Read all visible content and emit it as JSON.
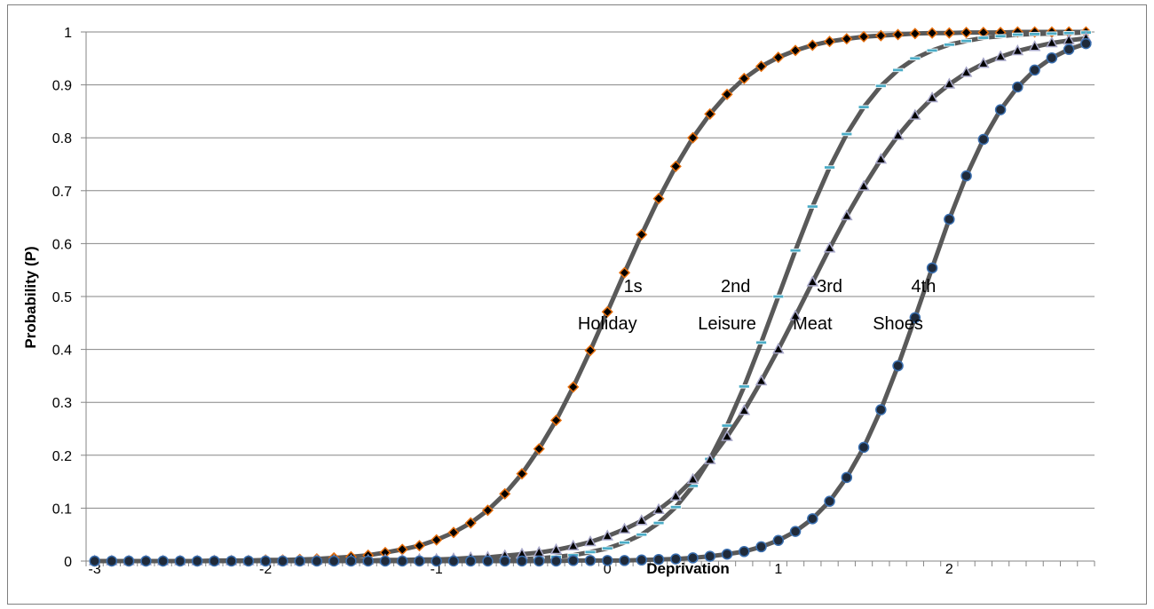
{
  "chart_data": {
    "type": "line",
    "title": "",
    "xlabel": "Deprivation",
    "ylabel": "Probability (P)",
    "xlim": [
      -3,
      2.8
    ],
    "ylim": [
      0,
      1
    ],
    "x_ticks": [
      "-3",
      "-2",
      "-1",
      "0",
      "1",
      "2"
    ],
    "x_tick_values": [
      -3,
      -2,
      -1,
      0,
      1,
      2
    ],
    "y_ticks": [
      "0",
      "0.1",
      "0.2",
      "0.3",
      "0.4",
      "0.5",
      "0.6",
      "0.7",
      "0.8",
      "0.9",
      "1"
    ],
    "grid": "horizontal",
    "legend": "none",
    "line_color": "#595959",
    "annotations": [
      {
        "text": "1s",
        "x": 0.15,
        "y": 0.52
      },
      {
        "text": "Holiday",
        "x": 0.0,
        "y": 0.45
      },
      {
        "text": "2nd",
        "x": 0.75,
        "y": 0.52
      },
      {
        "text": "Leisure",
        "x": 0.7,
        "y": 0.45
      },
      {
        "text": "3rd",
        "x": 1.3,
        "y": 0.52
      },
      {
        "text": "Meat",
        "x": 1.2,
        "y": 0.45
      },
      {
        "text": "4th",
        "x": 1.85,
        "y": 0.52
      },
      {
        "text": "Shoes",
        "x": 1.7,
        "y": 0.45
      }
    ],
    "series": [
      {
        "marker": "diamond",
        "marker_fill": "#000000",
        "marker_edge": "#e46c0a",
        "x": [
          -3.0,
          -2.9,
          -2.8,
          -2.7,
          -2.6,
          -2.5,
          -2.4,
          -2.3,
          -2.2,
          -2.1,
          -2.0,
          -1.9,
          -1.8,
          -1.7,
          -1.6,
          -1.5,
          -1.4,
          -1.3,
          -1.2,
          -1.1,
          -1.0,
          -0.9,
          -0.8,
          -0.7,
          -0.6,
          -0.5,
          -0.4,
          -0.3,
          -0.2,
          -0.1,
          0.0,
          0.1,
          0.2,
          0.3,
          0.4,
          0.5,
          0.6,
          0.7,
          0.8,
          0.9,
          1.0,
          1.1,
          1.2,
          1.3,
          1.4,
          1.5,
          1.6,
          1.7,
          1.8,
          1.9,
          2.0,
          2.1,
          2.2,
          2.3,
          2.4,
          2.5,
          2.6,
          2.7,
          2.8
        ],
        "y": [
          0.0,
          0.0,
          0.0,
          0.0,
          0.0,
          0.0,
          0.0,
          0.001,
          0.001,
          0.001,
          0.002,
          0.002,
          0.003,
          0.004,
          0.006,
          0.008,
          0.011,
          0.016,
          0.022,
          0.029,
          0.04,
          0.054,
          0.072,
          0.096,
          0.127,
          0.165,
          0.212,
          0.266,
          0.329,
          0.398,
          0.471,
          0.545,
          0.617,
          0.685,
          0.746,
          0.8,
          0.845,
          0.882,
          0.912,
          0.935,
          0.952,
          0.965,
          0.975,
          0.982,
          0.987,
          0.991,
          0.993,
          0.995,
          0.997,
          0.998,
          0.998,
          0.999,
          0.999,
          0.999,
          1.0,
          1.0,
          1.0,
          1.0,
          1.0
        ]
      },
      {
        "marker": "dash",
        "marker_fill": "#4bacc6",
        "marker_edge": "#4bacc6",
        "x": [
          -3.0,
          -2.9,
          -2.8,
          -2.7,
          -2.6,
          -2.5,
          -2.4,
          -2.3,
          -2.2,
          -2.1,
          -2.0,
          -1.9,
          -1.8,
          -1.7,
          -1.6,
          -1.5,
          -1.4,
          -1.3,
          -1.2,
          -1.1,
          -1.0,
          -0.9,
          -0.8,
          -0.7,
          -0.6,
          -0.5,
          -0.4,
          -0.3,
          -0.2,
          -0.1,
          0.0,
          0.1,
          0.2,
          0.3,
          0.4,
          0.5,
          0.6,
          0.7,
          0.8,
          0.9,
          1.0,
          1.1,
          1.2,
          1.3,
          1.4,
          1.5,
          1.6,
          1.7,
          1.8,
          1.9,
          2.0,
          2.1,
          2.2,
          2.3,
          2.4,
          2.5,
          2.6,
          2.7,
          2.8
        ],
        "y": [
          0.0,
          0.0,
          0.0,
          0.0,
          0.0,
          0.0,
          0.0,
          0.0,
          0.0,
          0.0,
          0.0,
          0.0,
          0.0,
          0.0,
          0.0,
          0.0,
          0.0,
          0.0,
          0.0,
          0.0,
          0.001,
          0.001,
          0.001,
          0.002,
          0.003,
          0.004,
          0.005,
          0.008,
          0.011,
          0.017,
          0.024,
          0.035,
          0.05,
          0.072,
          0.102,
          0.142,
          0.193,
          0.256,
          0.33,
          0.413,
          0.5,
          0.587,
          0.67,
          0.744,
          0.807,
          0.858,
          0.898,
          0.928,
          0.95,
          0.965,
          0.976,
          0.983,
          0.989,
          0.992,
          0.995,
          0.996,
          0.997,
          0.998,
          0.999
        ]
      },
      {
        "marker": "triangle",
        "marker_fill": "#000000",
        "marker_edge": "#a6a6c8",
        "x": [
          -3.0,
          -2.9,
          -2.8,
          -2.7,
          -2.6,
          -2.5,
          -2.4,
          -2.3,
          -2.2,
          -2.1,
          -2.0,
          -1.9,
          -1.8,
          -1.7,
          -1.6,
          -1.5,
          -1.4,
          -1.3,
          -1.2,
          -1.1,
          -1.0,
          -0.9,
          -0.8,
          -0.7,
          -0.6,
          -0.5,
          -0.4,
          -0.3,
          -0.2,
          -0.1,
          0.0,
          0.1,
          0.2,
          0.3,
          0.4,
          0.5,
          0.6,
          0.7,
          0.8,
          0.9,
          1.0,
          1.1,
          1.2,
          1.3,
          1.4,
          1.5,
          1.6,
          1.7,
          1.8,
          1.9,
          2.0,
          2.1,
          2.2,
          2.3,
          2.4,
          2.5,
          2.6,
          2.7,
          2.8
        ],
        "y": [
          0.0,
          0.0,
          0.0,
          0.0,
          0.0,
          0.0,
          0.0,
          0.0,
          0.0,
          0.0,
          0.0,
          0.0,
          0.0,
          0.001,
          0.001,
          0.001,
          0.001,
          0.002,
          0.002,
          0.003,
          0.003,
          0.004,
          0.006,
          0.007,
          0.01,
          0.013,
          0.016,
          0.021,
          0.028,
          0.036,
          0.047,
          0.06,
          0.076,
          0.097,
          0.122,
          0.154,
          0.191,
          0.235,
          0.284,
          0.34,
          0.4,
          0.463,
          0.527,
          0.591,
          0.652,
          0.708,
          0.759,
          0.804,
          0.842,
          0.875,
          0.901,
          0.923,
          0.94,
          0.953,
          0.964,
          0.972,
          0.979,
          0.984,
          0.988
        ]
      },
      {
        "marker": "circle",
        "marker_fill": "#1f2a3a",
        "marker_edge": "#3a6fb0",
        "x": [
          -3.0,
          -2.9,
          -2.8,
          -2.7,
          -2.6,
          -2.5,
          -2.4,
          -2.3,
          -2.2,
          -2.1,
          -2.0,
          -1.9,
          -1.8,
          -1.7,
          -1.6,
          -1.5,
          -1.4,
          -1.3,
          -1.2,
          -1.1,
          -1.0,
          -0.9,
          -0.8,
          -0.7,
          -0.6,
          -0.5,
          -0.4,
          -0.3,
          -0.2,
          -0.1,
          0.0,
          0.1,
          0.2,
          0.3,
          0.4,
          0.5,
          0.6,
          0.7,
          0.8,
          0.9,
          1.0,
          1.1,
          1.2,
          1.3,
          1.4,
          1.5,
          1.6,
          1.7,
          1.8,
          1.9,
          2.0,
          2.1,
          2.2,
          2.3,
          2.4,
          2.5,
          2.6,
          2.7,
          2.8
        ],
        "y": [
          0.0,
          0.0,
          0.0,
          0.0,
          0.0,
          0.0,
          0.0,
          0.0,
          0.0,
          0.0,
          0.0,
          0.0,
          0.0,
          0.0,
          0.0,
          0.0,
          0.0,
          0.0,
          0.0,
          0.0,
          0.0,
          0.0,
          0.0,
          0.0,
          0.0,
          0.0,
          0.0,
          0.0,
          0.001,
          0.001,
          0.001,
          0.001,
          0.002,
          0.003,
          0.004,
          0.006,
          0.009,
          0.013,
          0.018,
          0.027,
          0.039,
          0.056,
          0.08,
          0.113,
          0.158,
          0.215,
          0.286,
          0.369,
          0.46,
          0.554,
          0.646,
          0.728,
          0.797,
          0.853,
          0.896,
          0.928,
          0.951,
          0.967,
          0.978
        ]
      }
    ]
  }
}
